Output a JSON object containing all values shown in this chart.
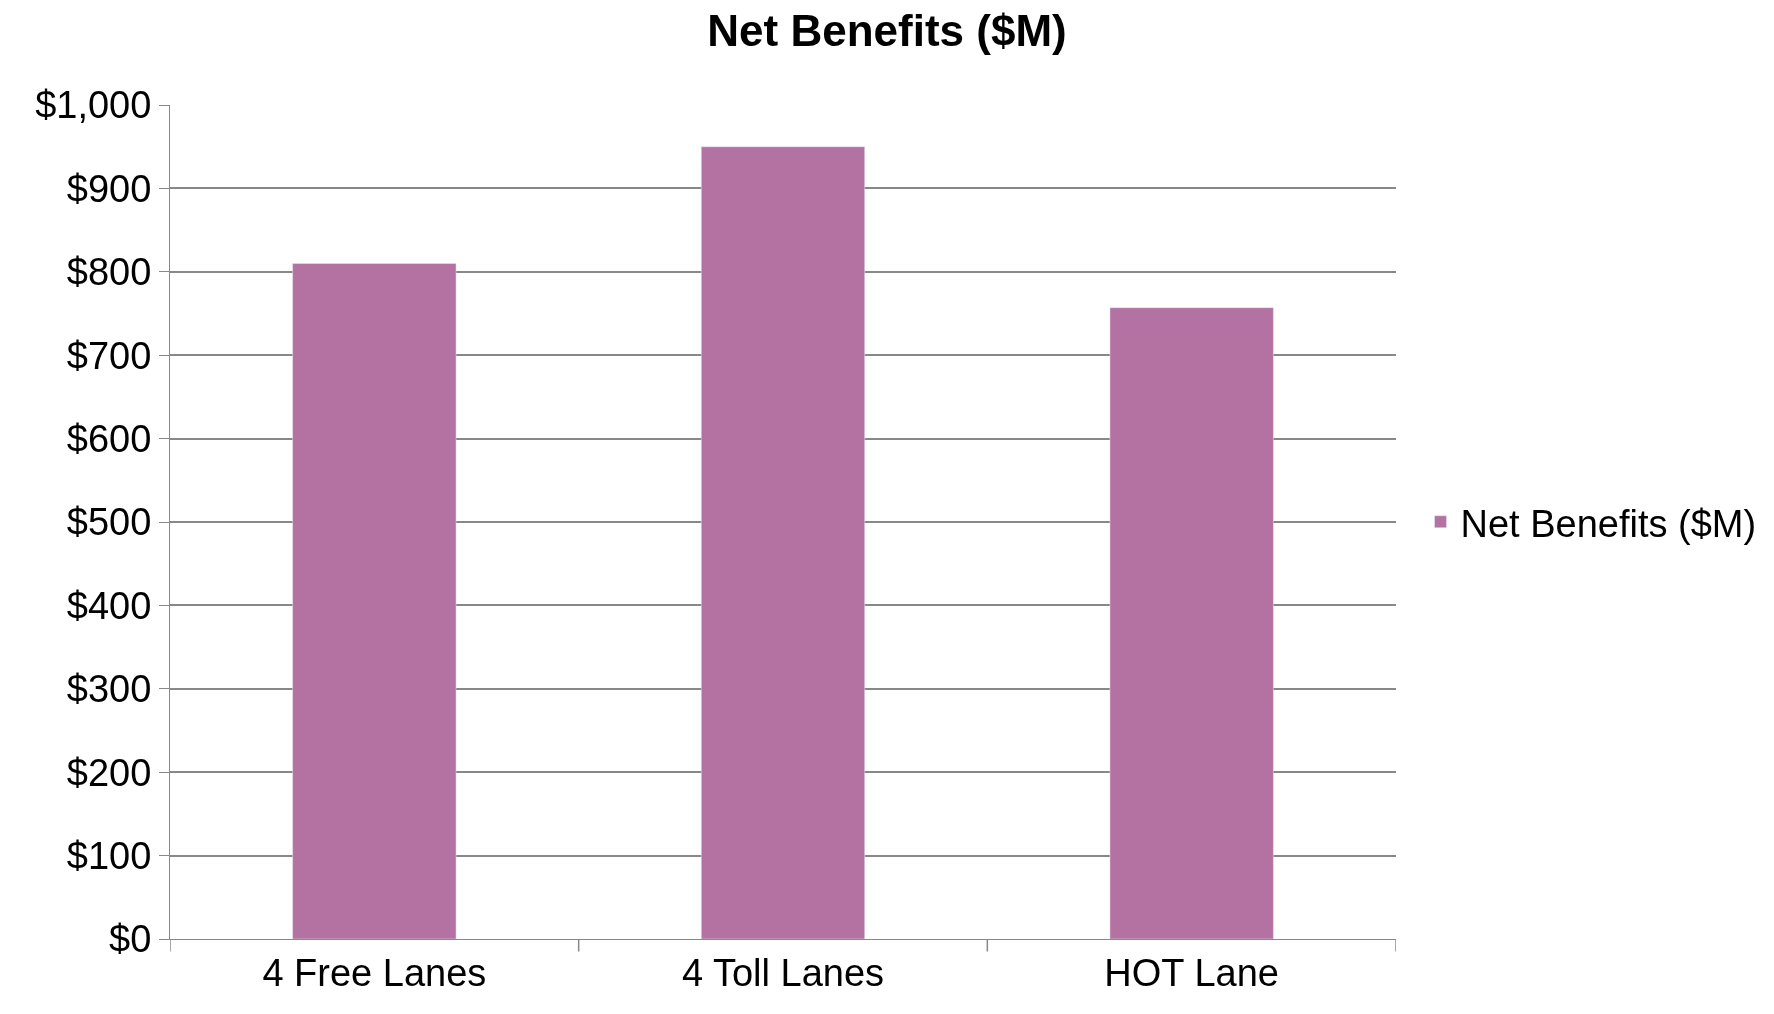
{
  "chart_data": {
    "type": "bar",
    "title": "Net Benefits ($M)",
    "categories": [
      "4 Free Lanes",
      "4 Toll Lanes",
      "HOT Lane"
    ],
    "series": [
      {
        "name": "Net Benefits ($M)",
        "color": "#b472a3",
        "values": [
          810,
          950,
          757
        ]
      }
    ],
    "ylim": [
      0,
      1000
    ],
    "yticks": [
      {
        "value": 0,
        "label": "$0"
      },
      {
        "value": 100,
        "label": "$100"
      },
      {
        "value": 200,
        "label": "$200"
      },
      {
        "value": 300,
        "label": "$300"
      },
      {
        "value": 400,
        "label": "$400"
      },
      {
        "value": 500,
        "label": "$500"
      },
      {
        "value": 600,
        "label": "$600"
      },
      {
        "value": 700,
        "label": "$700"
      },
      {
        "value": 800,
        "label": "$800"
      },
      {
        "value": 900,
        "label": "$900"
      },
      {
        "value": 1000,
        "label": "$1,000"
      }
    ],
    "grid": "y",
    "legend": "right"
  }
}
